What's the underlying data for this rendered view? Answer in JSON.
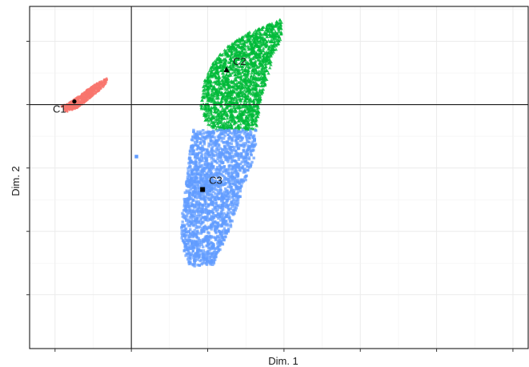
{
  "chart_data": {
    "type": "scatter",
    "xlabel": "Dim. 1",
    "ylabel": "Dim. 2",
    "xlim": [
      -2.0,
      7.8
    ],
    "ylim": [
      -3.85,
      1.55
    ],
    "x_ticks": [
      -1.5,
      0,
      1.5,
      3,
      4.5,
      6,
      7.5
    ],
    "y_ticks": [
      -3,
      -2,
      -1,
      0,
      1
    ],
    "reference_lines": {
      "x": 0,
      "y": 0
    },
    "grid": true,
    "legend": "none",
    "series": [
      {
        "color": "#F8766D",
        "marker": "circle",
        "spread": [
          0.55,
          0.08
        ],
        "count": 600,
        "cloud_polygon": [
          [
            -1.38,
            -0.02
          ],
          [
            -1.18,
            0.05
          ],
          [
            -0.9,
            0.22
          ],
          [
            -0.6,
            0.38
          ],
          [
            -0.47,
            0.42
          ],
          [
            -0.5,
            0.31
          ],
          [
            -0.78,
            0.12
          ],
          [
            -1.05,
            -0.05
          ],
          [
            -1.28,
            -0.12
          ]
        ]
      },
      {
        "color": "#00BA38",
        "marker": "triangle",
        "count": 1900,
        "cloud_polygon": [
          [
            1.35,
            0
          ],
          [
            1.42,
            0.35
          ],
          [
            1.6,
            0.65
          ],
          [
            1.85,
            0.9
          ],
          [
            2.25,
            1.12
          ],
          [
            2.65,
            1.25
          ],
          [
            2.95,
            1.35
          ],
          [
            2.95,
            1.08
          ],
          [
            2.75,
            0.62
          ],
          [
            2.55,
            0.12
          ],
          [
            2.45,
            -0.4
          ],
          [
            1.7,
            -0.4
          ],
          [
            1.45,
            -0.3
          ]
        ]
      },
      {
        "color": "#619CFF",
        "marker": "square",
        "count": 1900,
        "cloud_polygon": [
          [
            1.2,
            -0.4
          ],
          [
            2.45,
            -0.4
          ],
          [
            2.45,
            -0.75
          ],
          [
            2.2,
            -1.3
          ],
          [
            1.95,
            -1.95
          ],
          [
            1.6,
            -2.55
          ],
          [
            1.15,
            -2.55
          ],
          [
            0.97,
            -2.2
          ],
          [
            1.0,
            -1.7
          ],
          [
            1.1,
            -1.1
          ]
        ],
        "outliers": [
          [
            0.1,
            -0.82
          ]
        ]
      }
    ],
    "centroids": [
      {
        "label": "C1",
        "x": -1.12,
        "y": 0.05,
        "marker": "circle"
      },
      {
        "label": "C2",
        "x": 1.87,
        "y": 0.55,
        "marker": "triangle"
      },
      {
        "label": "C3",
        "x": 1.4,
        "y": -1.34,
        "marker": "square"
      }
    ]
  }
}
